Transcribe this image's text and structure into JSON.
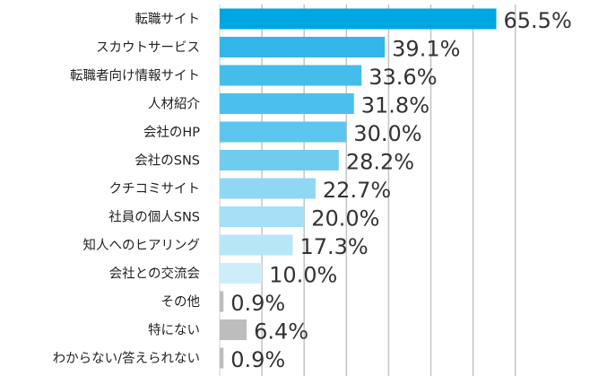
{
  "chart_data": {
    "type": "bar",
    "orientation": "horizontal",
    "categories": [
      "転職サイト",
      "スカウトサービス",
      "転職者向け情報サイト",
      "人材紹介",
      "会社のHP",
      "会社のSNS",
      "クチコミサイト",
      "社員の個人SNS",
      "知人へのヒアリング",
      "会社との交流会",
      "その他",
      "特にない",
      "わからない/答えられない"
    ],
    "values": [
      65.5,
      39.1,
      33.6,
      31.8,
      30.0,
      28.2,
      22.7,
      20.0,
      17.3,
      10.0,
      0.9,
      6.4,
      0.9
    ],
    "data_labels": [
      "65.5%",
      "39.1%",
      "33.6%",
      "31.8%",
      "30.0%",
      "28.2%",
      "22.7%",
      "20.0%",
      "17.3%",
      "10.0%",
      "0.9%",
      "6.4%",
      "0.9%"
    ],
    "colors": [
      "#00a6e2",
      "#33b6ea",
      "#45bdeb",
      "#4bc0ec",
      "#5ec6ee",
      "#70ccef",
      "#8fd8f3",
      "#a6e0f6",
      "#b7e7f7",
      "#cdeef9",
      "#bdbdbd",
      "#bdbdbd",
      "#bdbdbd"
    ],
    "xlim": [
      0,
      70
    ],
    "grid": true,
    "title": "",
    "xlabel": "",
    "ylabel": ""
  }
}
